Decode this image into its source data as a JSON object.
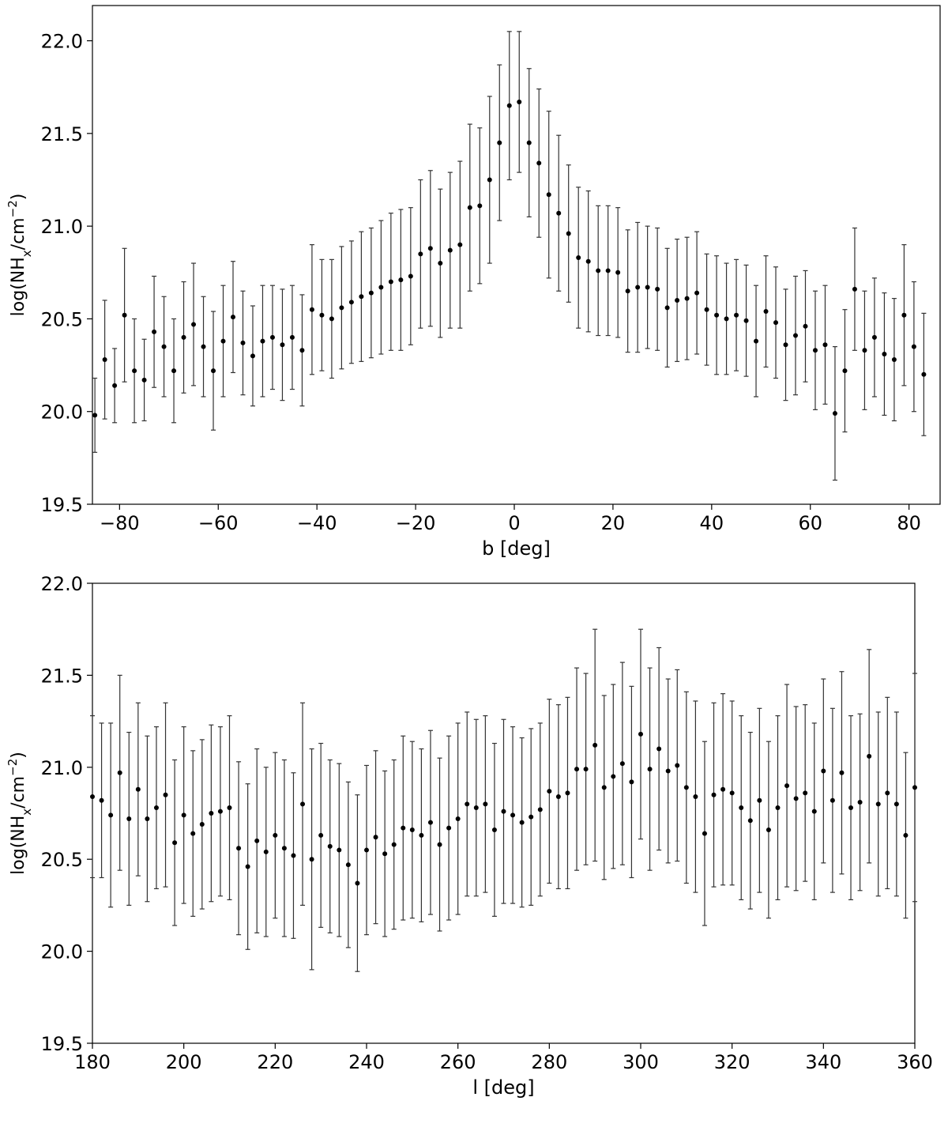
{
  "chart_data": [
    {
      "type": "errorbar",
      "color": "#000000",
      "xlabel": "b [deg]",
      "ylabel": {
        "main": "log(NH",
        "sub": "x",
        "mid": "/cm",
        "sup": "−2",
        "end": ")"
      },
      "xlim": [
        -85.5,
        86.3
      ],
      "ylim": [
        19.5,
        22.19
      ],
      "xticks": [
        {
          "value": -80,
          "label": "−80"
        },
        {
          "value": -60,
          "label": "−60"
        },
        {
          "value": -40,
          "label": "−40"
        },
        {
          "value": -20,
          "label": "−20"
        },
        0,
        20,
        40,
        60,
        80
      ],
      "yticks": [
        19.5,
        {
          "value": 20,
          "label": "20.0"
        },
        20.5,
        {
          "value": 21,
          "label": "21.0"
        },
        21.5,
        {
          "value": 22,
          "label": "22.0"
        }
      ],
      "x": [
        -85,
        -83,
        -81,
        -79,
        -77,
        -75,
        -73,
        -71,
        -69,
        -67,
        -65,
        -63,
        -61,
        -59,
        -57,
        -55,
        -53,
        -51,
        -49,
        -47,
        -45,
        -43,
        -41,
        -39,
        -37,
        -35,
        -33,
        -31,
        -29,
        -27,
        -25,
        -23,
        -21,
        -19,
        -17,
        -15,
        -13,
        -11,
        -9,
        -7,
        -5,
        -3,
        -1,
        1,
        3,
        5,
        7,
        9,
        11,
        13,
        15,
        17,
        19,
        21,
        23,
        25,
        27,
        29,
        31,
        33,
        35,
        37,
        39,
        41,
        43,
        45,
        47,
        49,
        51,
        53,
        55,
        57,
        59,
        61,
        63,
        65,
        67,
        69,
        71,
        73,
        75,
        77,
        79,
        81,
        83
      ],
      "values": [
        19.98,
        20.28,
        20.14,
        20.52,
        20.22,
        20.17,
        20.43,
        20.35,
        20.22,
        20.4,
        20.47,
        20.35,
        20.22,
        20.38,
        20.51,
        20.37,
        20.3,
        20.38,
        20.4,
        20.36,
        20.4,
        20.33,
        20.55,
        20.52,
        20.5,
        20.56,
        20.59,
        20.62,
        20.64,
        20.67,
        20.7,
        20.71,
        20.73,
        20.85,
        20.88,
        20.8,
        20.87,
        20.9,
        21.1,
        21.11,
        21.25,
        21.45,
        21.65,
        21.67,
        21.45,
        21.34,
        21.17,
        21.07,
        20.96,
        20.83,
        20.81,
        20.76,
        20.76,
        20.75,
        20.65,
        20.67,
        20.67,
        20.66,
        20.56,
        20.6,
        20.61,
        20.64,
        20.55,
        20.52,
        20.5,
        20.52,
        20.49,
        20.38,
        20.54,
        20.48,
        20.36,
        20.41,
        20.46,
        20.33,
        20.36,
        19.99,
        20.22,
        20.66,
        20.33,
        20.4,
        20.31,
        20.28,
        20.52,
        20.35,
        20.2
      ],
      "errors": [
        0.2,
        0.32,
        0.2,
        0.36,
        0.28,
        0.22,
        0.3,
        0.27,
        0.28,
        0.3,
        0.33,
        0.27,
        0.32,
        0.3,
        0.3,
        0.28,
        0.27,
        0.3,
        0.28,
        0.3,
        0.28,
        0.3,
        0.35,
        0.3,
        0.32,
        0.33,
        0.33,
        0.35,
        0.35,
        0.36,
        0.37,
        0.38,
        0.37,
        0.4,
        0.42,
        0.4,
        0.42,
        0.45,
        0.45,
        0.42,
        0.45,
        0.42,
        0.4,
        0.38,
        0.4,
        0.4,
        0.45,
        0.42,
        0.37,
        0.38,
        0.38,
        0.35,
        0.35,
        0.35,
        0.33,
        0.35,
        0.33,
        0.33,
        0.32,
        0.33,
        0.33,
        0.33,
        0.3,
        0.32,
        0.3,
        0.3,
        0.3,
        0.3,
        0.3,
        0.3,
        0.3,
        0.32,
        0.3,
        0.32,
        0.32,
        0.36,
        0.33,
        0.33,
        0.32,
        0.32,
        0.33,
        0.33,
        0.38,
        0.35,
        0.33
      ]
    },
    {
      "type": "errorbar",
      "color": "#000000",
      "xlabel": "l [deg]",
      "ylabel": {
        "main": "log(NH",
        "sub": "x",
        "mid": "/cm",
        "sup": "−2",
        "end": ")"
      },
      "xlim": [
        180,
        360
      ],
      "ylim": [
        19.5,
        22.0
      ],
      "xticks": [
        180,
        200,
        220,
        240,
        260,
        280,
        300,
        320,
        340,
        360
      ],
      "yticks": [
        19.5,
        {
          "value": 20,
          "label": "20.0"
        },
        20.5,
        {
          "value": 21,
          "label": "21.0"
        },
        21.5,
        {
          "value": 22,
          "label": "22.0"
        }
      ],
      "x": [
        180,
        182,
        184,
        186,
        188,
        190,
        192,
        194,
        196,
        198,
        200,
        202,
        204,
        206,
        208,
        210,
        212,
        214,
        216,
        218,
        220,
        222,
        224,
        226,
        228,
        230,
        232,
        234,
        236,
        238,
        240,
        242,
        244,
        246,
        248,
        250,
        252,
        254,
        256,
        258,
        260,
        262,
        264,
        266,
        268,
        270,
        272,
        274,
        276,
        278,
        280,
        282,
        284,
        286,
        288,
        290,
        292,
        294,
        296,
        298,
        300,
        302,
        304,
        306,
        308,
        310,
        312,
        314,
        316,
        318,
        320,
        322,
        324,
        326,
        328,
        330,
        332,
        334,
        336,
        338,
        340,
        342,
        344,
        346,
        348,
        350,
        352,
        354,
        356,
        358,
        360
      ],
      "values": [
        20.84,
        20.82,
        20.74,
        20.97,
        20.72,
        20.88,
        20.72,
        20.78,
        20.85,
        20.59,
        20.74,
        20.64,
        20.69,
        20.75,
        20.76,
        20.78,
        20.56,
        20.46,
        20.6,
        20.54,
        20.63,
        20.56,
        20.52,
        20.8,
        20.5,
        20.63,
        20.57,
        20.55,
        20.47,
        20.37,
        20.55,
        20.62,
        20.53,
        20.58,
        20.67,
        20.66,
        20.63,
        20.7,
        20.58,
        20.67,
        20.72,
        20.8,
        20.78,
        20.8,
        20.66,
        20.76,
        20.74,
        20.7,
        20.73,
        20.77,
        20.87,
        20.84,
        20.86,
        20.99,
        20.99,
        21.12,
        20.89,
        20.95,
        21.02,
        20.92,
        21.18,
        20.99,
        21.1,
        20.98,
        21.01,
        20.89,
        20.84,
        20.64,
        20.85,
        20.88,
        20.86,
        20.78,
        20.71,
        20.82,
        20.66,
        20.78,
        20.9,
        20.83,
        20.86,
        20.76,
        20.98,
        20.82,
        20.97,
        20.78,
        20.81,
        21.06,
        20.8,
        20.86,
        20.8,
        20.63,
        20.89
      ],
      "errors": [
        0.44,
        0.42,
        0.5,
        0.53,
        0.47,
        0.47,
        0.45,
        0.44,
        0.5,
        0.45,
        0.48,
        0.45,
        0.46,
        0.48,
        0.46,
        0.5,
        0.47,
        0.45,
        0.5,
        0.46,
        0.45,
        0.48,
        0.45,
        0.55,
        0.6,
        0.5,
        0.47,
        0.47,
        0.45,
        0.48,
        0.46,
        0.47,
        0.45,
        0.46,
        0.5,
        0.48,
        0.47,
        0.5,
        0.47,
        0.5,
        0.52,
        0.5,
        0.48,
        0.48,
        0.47,
        0.5,
        0.48,
        0.46,
        0.48,
        0.47,
        0.5,
        0.5,
        0.52,
        0.55,
        0.52,
        0.63,
        0.5,
        0.5,
        0.55,
        0.52,
        0.57,
        0.55,
        0.55,
        0.5,
        0.52,
        0.52,
        0.52,
        0.5,
        0.5,
        0.52,
        0.5,
        0.5,
        0.48,
        0.5,
        0.48,
        0.5,
        0.55,
        0.5,
        0.48,
        0.48,
        0.5,
        0.5,
        0.55,
        0.5,
        0.48,
        0.58,
        0.5,
        0.52,
        0.5,
        0.45,
        0.62
      ]
    }
  ]
}
